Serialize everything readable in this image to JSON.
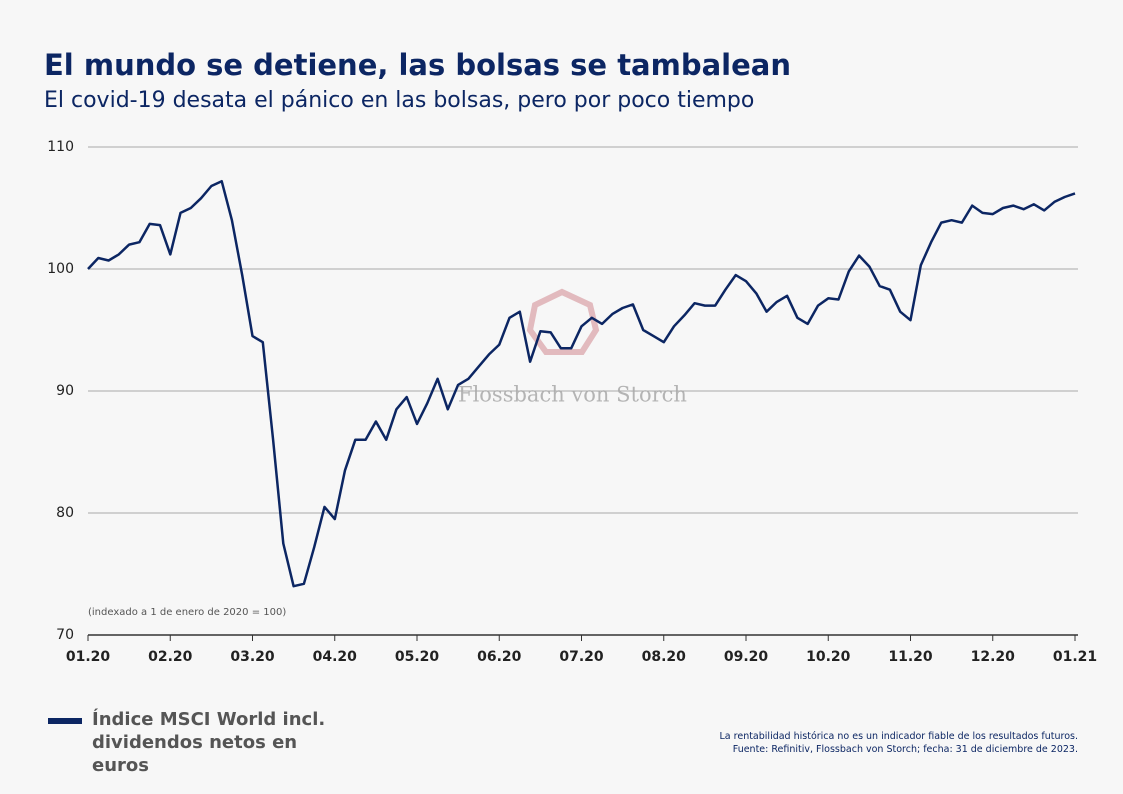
{
  "chart_data": {
    "type": "line",
    "title": "El mundo se detiene, las bolsas se tambalean",
    "subtitle": "El covid-19 desata el pánico en las bolsas, pero por poco tiempo",
    "annotation": "(indexado a 1 de enero de 2020 = 100)",
    "watermark": "Flossbach von Storch",
    "notes": [
      "La rentabilidad histórica no es un indicador fiable de los resultados futuros.",
      "Fuente: Refinitiv, Flossbach von Storch; fecha: 31 de diciembre de 2023."
    ],
    "categories": [
      "01.20",
      null,
      null,
      null,
      null,
      null,
      null,
      null,
      "02.20",
      null,
      null,
      null,
      null,
      null,
      null,
      null,
      "03.20",
      null,
      null,
      null,
      null,
      null,
      null,
      null,
      "04.20",
      null,
      null,
      null,
      null,
      null,
      null,
      null,
      "05.20",
      null,
      null,
      null,
      null,
      null,
      null,
      null,
      "06.20",
      null,
      null,
      null,
      null,
      null,
      null,
      null,
      "07.20",
      null,
      null,
      null,
      null,
      null,
      null,
      null,
      "08.20",
      null,
      null,
      null,
      null,
      null,
      null,
      null,
      "09.20",
      null,
      null,
      null,
      null,
      null,
      null,
      null,
      "10.20",
      null,
      null,
      null,
      null,
      null,
      null,
      null,
      "11.20",
      null,
      null,
      null,
      null,
      null,
      null,
      null,
      "12.20",
      null,
      null,
      null,
      null,
      null,
      null,
      null,
      "01.21"
    ],
    "series": [
      {
        "name": "Índice MSCI World incl. dividendos netos en euros",
        "color": "#0c2663",
        "values": [
          100,
          100.9,
          100.7,
          101.2,
          102.0,
          102.2,
          103.7,
          103.6,
          101.2,
          104.6,
          105.0,
          105.8,
          106.8,
          107.2,
          104.0,
          99.5,
          94.5,
          94.0,
          86.0,
          77.5,
          74.0,
          74.2,
          77.2,
          80.5,
          79.5,
          83.5,
          86.0,
          86.0,
          87.5,
          86.0,
          88.5,
          89.5,
          87.3,
          89.0,
          91.0,
          88.5,
          90.5,
          91.0,
          92.0,
          93.0,
          93.8,
          96.0,
          96.5,
          92.4,
          94.9,
          94.8,
          93.5,
          93.5,
          95.3,
          96.0,
          95.5,
          96.3,
          96.8,
          97.1,
          95.0,
          94.5,
          94.0,
          95.3,
          96.2,
          97.2,
          97.0,
          97.0,
          98.3,
          99.5,
          99.0,
          98.0,
          96.5,
          97.3,
          97.8,
          96.0,
          95.5,
          97.0,
          97.6,
          97.5,
          99.8,
          101.1,
          100.2,
          98.6,
          98.3,
          96.5,
          95.8,
          100.3,
          102.2,
          103.8,
          104.0,
          103.8,
          105.2,
          104.6,
          104.5,
          105.0,
          105.2,
          104.9,
          105.3,
          104.8,
          105.5,
          105.9,
          106.2
        ]
      }
    ],
    "ylim": [
      70,
      110
    ],
    "yticks": [
      70,
      80,
      90,
      100,
      110
    ],
    "grid": true
  }
}
